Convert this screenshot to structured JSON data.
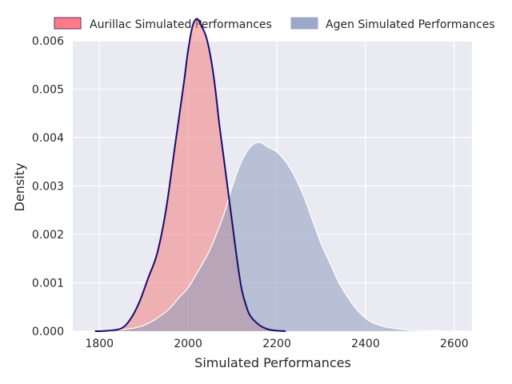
{
  "chart_data": {
    "type": "area",
    "xlabel": "Simulated Performances",
    "ylabel": "Density",
    "xlim": [
      1740,
      2640
    ],
    "ylim": [
      0,
      0.00598
    ],
    "x_ticks": [
      1800,
      2000,
      2200,
      2400,
      2600
    ],
    "x_tick_labels": [
      "1800",
      "2000",
      "2200",
      "2400",
      "2600"
    ],
    "y_ticks": [
      0.0,
      0.001,
      0.002,
      0.003,
      0.004,
      0.005,
      0.006
    ],
    "y_tick_labels": [
      "0.000",
      "0.001",
      "0.002",
      "0.003",
      "0.004",
      "0.005",
      "0.006"
    ],
    "grid": true,
    "legend_position": "top",
    "background": "#eaeaf2",
    "series": [
      {
        "name": "Aurillac Simulated Performances",
        "fill": "#f08080",
        "fill_opacity": 0.55,
        "legend_fill": "#ff7b86",
        "line": "#1a0a6e",
        "points": [
          [
            1790,
            0.0
          ],
          [
            1820,
            1e-05
          ],
          [
            1850,
            6e-05
          ],
          [
            1870,
            0.00025
          ],
          [
            1890,
            0.0006
          ],
          [
            1910,
            0.0011
          ],
          [
            1930,
            0.0016
          ],
          [
            1950,
            0.0025
          ],
          [
            1970,
            0.0038
          ],
          [
            1990,
            0.0051
          ],
          [
            2000,
            0.0058
          ],
          [
            2010,
            0.0063
          ],
          [
            2020,
            0.00645
          ],
          [
            2030,
            0.0063
          ],
          [
            2040,
            0.0061
          ],
          [
            2050,
            0.0057
          ],
          [
            2060,
            0.0051
          ],
          [
            2070,
            0.0043
          ],
          [
            2080,
            0.0036
          ],
          [
            2090,
            0.0029
          ],
          [
            2100,
            0.0022
          ],
          [
            2110,
            0.0015
          ],
          [
            2120,
            0.0009
          ],
          [
            2130,
            0.00055
          ],
          [
            2140,
            0.00032
          ],
          [
            2160,
            0.00013
          ],
          [
            2180,
            4e-05
          ],
          [
            2200,
            1e-05
          ],
          [
            2220,
            0.0
          ]
        ]
      },
      {
        "name": "Agen Simulated Performances",
        "fill": "#8c9cbc",
        "fill_opacity": 0.55,
        "legend_fill": "#9ca8c8",
        "line": "#ffffff",
        "points": [
          [
            1800,
            0.0
          ],
          [
            1850,
            3e-05
          ],
          [
            1900,
            0.00012
          ],
          [
            1950,
            0.0004
          ],
          [
            1980,
            0.0007
          ],
          [
            2000,
            0.0009
          ],
          [
            2020,
            0.0012
          ],
          [
            2050,
            0.0017
          ],
          [
            2080,
            0.0024
          ],
          [
            2100,
            0.003
          ],
          [
            2120,
            0.0035
          ],
          [
            2140,
            0.0038
          ],
          [
            2160,
            0.0039
          ],
          [
            2180,
            0.0038
          ],
          [
            2200,
            0.0037
          ],
          [
            2220,
            0.0035
          ],
          [
            2240,
            0.0032
          ],
          [
            2260,
            0.0028
          ],
          [
            2280,
            0.0023
          ],
          [
            2300,
            0.0018
          ],
          [
            2320,
            0.0014
          ],
          [
            2340,
            0.001
          ],
          [
            2360,
            0.0007
          ],
          [
            2380,
            0.00045
          ],
          [
            2400,
            0.00027
          ],
          [
            2420,
            0.00016
          ],
          [
            2450,
            8e-05
          ],
          [
            2500,
            2e-05
          ],
          [
            2550,
            1e-05
          ],
          [
            2600,
            0.0
          ]
        ]
      }
    ]
  }
}
